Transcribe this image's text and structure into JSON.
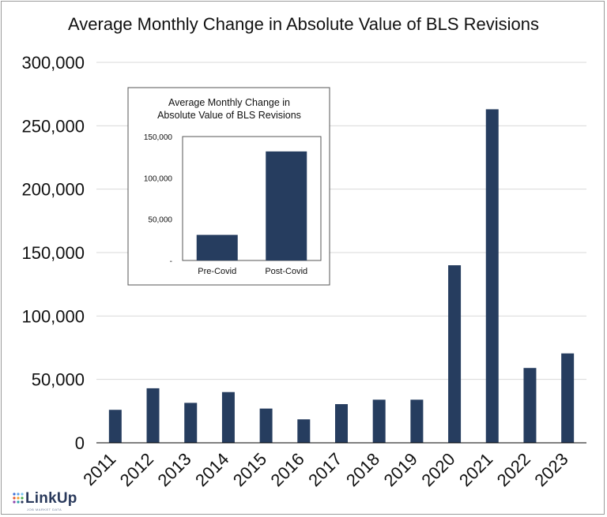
{
  "colors": {
    "bar": "#263d5f",
    "grid": "#d9d9d9",
    "axis": "#000000"
  },
  "logo": {
    "name": "LinkUp",
    "tagline": "JOB MARKET DATA",
    "icon": "dot-grid-icon"
  },
  "chart_data": [
    {
      "type": "bar",
      "title": "Average Monthly Change in Absolute Value of BLS Revisions",
      "categories": [
        "2011",
        "2012",
        "2013",
        "2014",
        "2015",
        "2016",
        "2017",
        "2018",
        "2019",
        "2020",
        "2021",
        "2022",
        "2023"
      ],
      "values": [
        26000,
        43000,
        31500,
        40000,
        27000,
        18500,
        30500,
        34000,
        34000,
        140000,
        263000,
        59000,
        70500
      ],
      "ylim": [
        0,
        300000
      ],
      "yticks": [
        "0",
        "50,000",
        "100,000",
        "150,000",
        "200,000",
        "250,000",
        "300,000"
      ],
      "ytick_values": [
        0,
        50000,
        100000,
        150000,
        200000,
        250000,
        300000
      ],
      "grid": true
    },
    {
      "type": "bar",
      "title": [
        "Average Monthly Change in",
        "Absolute Value of BLS Revisions"
      ],
      "categories": [
        "Pre-Covid",
        "Post-Covid"
      ],
      "values": [
        31000,
        132000
      ],
      "ylim": [
        0,
        150000
      ],
      "yticks": [
        "-",
        "50,000",
        "100,000",
        "150,000"
      ],
      "ytick_values": [
        0,
        50000,
        100000,
        150000
      ],
      "grid": false
    }
  ]
}
